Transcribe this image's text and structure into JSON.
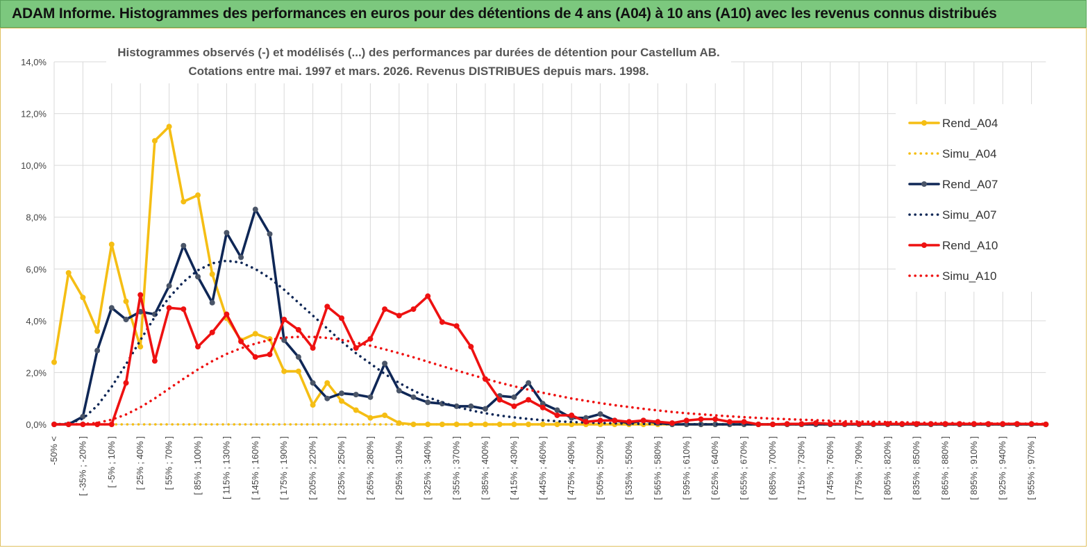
{
  "banner": {
    "title": "ADAM Informe. Histogrammes des performances en euros pour des détentions de 4 ans (A04) à 10 ans (A10) avec les revenus connus distribués"
  },
  "chart_data": {
    "type": "line",
    "title_line1": "Histogrammes observés (-) et modélisés (...) des performances par durées de détention pour Castellum AB.",
    "title_line2": "Cotations entre mai. 1997 et mars. 2026. Revenus DISTRIBUES depuis mars. 1998.",
    "ylim": [
      0,
      14
    ],
    "y_ticks": [
      "0,0%",
      "2,0%",
      "4,0%",
      "6,0%",
      "8,0%",
      "10,0%",
      "12,0%",
      "14,0%"
    ],
    "y_tick_values": [
      0,
      2,
      4,
      6,
      8,
      10,
      12,
      14
    ],
    "grid": true,
    "legend_position": "right",
    "x_labels": [
      "-50% <",
      "[ -35% ; -20% ]",
      "[ -5% ; 10% ]",
      "[ 25% ; 40% ]",
      "[ 55% ; 70% ]",
      "[ 85% ; 100% ]",
      "[ 115% ; 130% ]",
      "[ 145% ; 160% ]",
      "[ 175% ; 190% ]",
      "[ 205% ; 220% ]",
      "[ 235% ; 250% ]",
      "[ 265% ; 280% ]",
      "[ 295% ; 310% ]",
      "[ 325% ; 340% ]",
      "[ 355% ; 370% ]",
      "[ 385% ; 400% ]",
      "[ 415% ; 430% ]",
      "[ 445% ; 460% ]",
      "[ 475% ; 490% ]",
      "[ 505% ; 520% ]",
      "[ 535% ; 550% ]",
      "[ 565% ; 580% ]",
      "[ 595% ; 610% ]",
      "[ 625% ; 640% ]",
      "[ 655% ; 670% ]",
      "[ 685% ; 700% ]",
      "[ 715% ; 730% ]",
      "[ 745% ; 760% ]",
      "[ 775% ; 790% ]",
      "[ 805% ; 820% ]",
      "[ 835% ; 850% ]",
      "[ 865% ; 880% ]",
      "[ 895% ; 910% ]",
      "[ 925% ; 940% ]",
      "[ 955% ; 970% ]"
    ],
    "series": [
      {
        "name": "Rend_A04",
        "color": "#f5be14",
        "style": "solid",
        "values": [
          2.4,
          5.85,
          4.9,
          3.6,
          6.95,
          4.75,
          3.0,
          10.95,
          11.5,
          8.6,
          8.85,
          5.8,
          4.1,
          3.25,
          3.5,
          3.3,
          2.05,
          2.05,
          0.75,
          1.6,
          0.9,
          0.55,
          0.25,
          0.35,
          0.05,
          0,
          0,
          0,
          0,
          0,
          0,
          0,
          0,
          0,
          0,
          0,
          0,
          0,
          0,
          0,
          0,
          0,
          0,
          0,
          0,
          0,
          0,
          0,
          0,
          0,
          0,
          0,
          0,
          0,
          0,
          0,
          0,
          0,
          0,
          0,
          0,
          0,
          0,
          0,
          0,
          0,
          0,
          0,
          0,
          0
        ]
      },
      {
        "name": "Simu_A04",
        "color": "#f5be14",
        "style": "dotted",
        "values": [
          0,
          0,
          0,
          0,
          0,
          0,
          0,
          0,
          0,
          0,
          0,
          0,
          0,
          0,
          0,
          0,
          0,
          0,
          0,
          0,
          0,
          0,
          0,
          0,
          0,
          0,
          0,
          0,
          0,
          0,
          0,
          0,
          0,
          0,
          0,
          0,
          0,
          0,
          0,
          0,
          0,
          0,
          0,
          0,
          0,
          0,
          0,
          0,
          0,
          0,
          0,
          0,
          0,
          0,
          0,
          0,
          0,
          0,
          0,
          0,
          0,
          0,
          0,
          0,
          0,
          0,
          0,
          0,
          0,
          0
        ]
      },
      {
        "name": "Rend_A07",
        "color": "#0f2756",
        "style": "solid",
        "values": [
          0,
          0,
          0.3,
          2.85,
          4.5,
          4.05,
          4.35,
          4.25,
          5.35,
          6.9,
          5.7,
          4.7,
          7.4,
          6.45,
          8.3,
          7.35,
          3.25,
          2.6,
          1.6,
          1.0,
          1.2,
          1.15,
          1.05,
          2.35,
          1.3,
          1.05,
          0.85,
          0.8,
          0.7,
          0.7,
          0.6,
          1.1,
          1.05,
          1.6,
          0.8,
          0.55,
          0.25,
          0.25,
          0.4,
          0.15,
          0.05,
          0.15,
          0.05,
          0,
          0,
          0,
          0,
          0,
          0,
          0,
          0,
          0,
          0,
          0,
          0,
          0,
          0,
          0,
          0,
          0,
          0,
          0,
          0,
          0,
          0,
          0,
          0,
          0,
          0,
          0
        ]
      },
      {
        "name": "Simu_A07",
        "color": "#0f2756",
        "style": "dotted",
        "values": [
          0,
          0.03,
          0.22,
          0.72,
          1.45,
          2.32,
          3.25,
          4.15,
          4.9,
          5.5,
          5.95,
          6.22,
          6.32,
          6.25,
          6.0,
          5.65,
          5.2,
          4.7,
          4.2,
          3.7,
          3.2,
          2.75,
          2.35,
          1.95,
          1.6,
          1.3,
          1.05,
          0.85,
          0.68,
          0.54,
          0.43,
          0.34,
          0.27,
          0.21,
          0.16,
          0.12,
          0.09,
          0.07,
          0.05,
          0.04,
          0.03,
          0.02,
          0.015,
          0.01,
          0.008,
          0.006,
          0.004,
          0.003,
          0.002,
          0.002,
          0.001,
          0.001,
          0,
          0,
          0,
          0,
          0,
          0,
          0,
          0,
          0,
          0,
          0,
          0,
          0,
          0,
          0,
          0,
          0,
          0
        ]
      },
      {
        "name": "Rend_A10",
        "color": "#ee1111",
        "style": "solid",
        "values": [
          0,
          0,
          0,
          0,
          0,
          1.6,
          5.0,
          2.45,
          4.5,
          4.45,
          3.0,
          3.55,
          4.25,
          3.2,
          2.6,
          2.7,
          4.05,
          3.65,
          2.95,
          4.55,
          4.1,
          2.95,
          3.3,
          4.45,
          4.2,
          4.45,
          4.95,
          3.95,
          3.8,
          3.0,
          1.75,
          0.95,
          0.7,
          0.95,
          0.65,
          0.35,
          0.35,
          0.1,
          0.15,
          0.15,
          0.1,
          0.15,
          0.1,
          0.05,
          0.15,
          0.2,
          0.2,
          0.1,
          0.1,
          0,
          0,
          0.02,
          0.02,
          0.05,
          0.02,
          0.02,
          0.02,
          0.02,
          0.02,
          0.02,
          0.02,
          0.02,
          0.02,
          0.02,
          0.02,
          0.02,
          0.02,
          0.02,
          0.02,
          0
        ]
      },
      {
        "name": "Simu_A10",
        "color": "#ee1111",
        "style": "dotted",
        "values": [
          0,
          0,
          0.01,
          0.06,
          0.18,
          0.38,
          0.66,
          1.0,
          1.38,
          1.76,
          2.12,
          2.44,
          2.72,
          2.94,
          3.12,
          3.26,
          3.35,
          3.38,
          3.38,
          3.34,
          3.26,
          3.16,
          3.04,
          2.9,
          2.75,
          2.59,
          2.42,
          2.25,
          2.08,
          1.92,
          1.76,
          1.61,
          1.47,
          1.34,
          1.22,
          1.11,
          1.0,
          0.91,
          0.82,
          0.74,
          0.67,
          0.6,
          0.54,
          0.48,
          0.43,
          0.39,
          0.35,
          0.31,
          0.28,
          0.25,
          0.22,
          0.2,
          0.18,
          0.16,
          0.14,
          0.12,
          0.11,
          0.1,
          0.09,
          0.08,
          0.07,
          0.06,
          0.05,
          0.05,
          0.04,
          0.04,
          0.03,
          0.03,
          0.03,
          0.02
        ]
      }
    ]
  }
}
